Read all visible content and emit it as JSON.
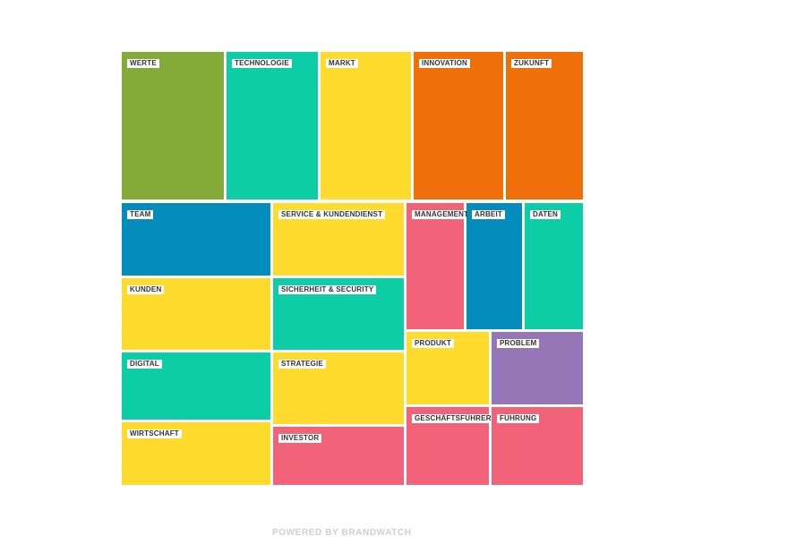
{
  "chart_data": {
    "type": "treemap",
    "items": [
      {
        "label": "WERTE",
        "color": "#84aa3a"
      },
      {
        "label": "TECHNOLOGIE",
        "color": "#0dcda6"
      },
      {
        "label": "MARKT",
        "color": "#fedb2d"
      },
      {
        "label": "INNOVATION",
        "color": "#ef6f0b"
      },
      {
        "label": "ZUKUNFT",
        "color": "#ef6f0b"
      },
      {
        "label": "TEAM",
        "color": "#048cbc"
      },
      {
        "label": "SERVICE & KUNDENDIENST",
        "color": "#fedb2d"
      },
      {
        "label": "MANAGEMENT",
        "color": "#f26279"
      },
      {
        "label": "ARBEIT",
        "color": "#048cbc"
      },
      {
        "label": "DATEN",
        "color": "#0dcda6"
      },
      {
        "label": "KUNDEN",
        "color": "#fedb2d"
      },
      {
        "label": "SICHERHEIT & SECURITY",
        "color": "#0dcda6"
      },
      {
        "label": "PRODUKT",
        "color": "#fedb2d"
      },
      {
        "label": "PROBLEM",
        "color": "#9577b7"
      },
      {
        "label": "DIGITAL",
        "color": "#0dcda6"
      },
      {
        "label": "STRATEGIE",
        "color": "#fedb2d"
      },
      {
        "label": "GESCHÄFTSFÜHRER",
        "color": "#f26279"
      },
      {
        "label": "FÜHRUNG",
        "color": "#f26279"
      },
      {
        "label": "WIRTSCHAFT",
        "color": "#fedb2d"
      },
      {
        "label": "INVESTOR",
        "color": "#f26279"
      }
    ]
  },
  "footer": {
    "text": "POWERED BY BRANDWATCH"
  }
}
